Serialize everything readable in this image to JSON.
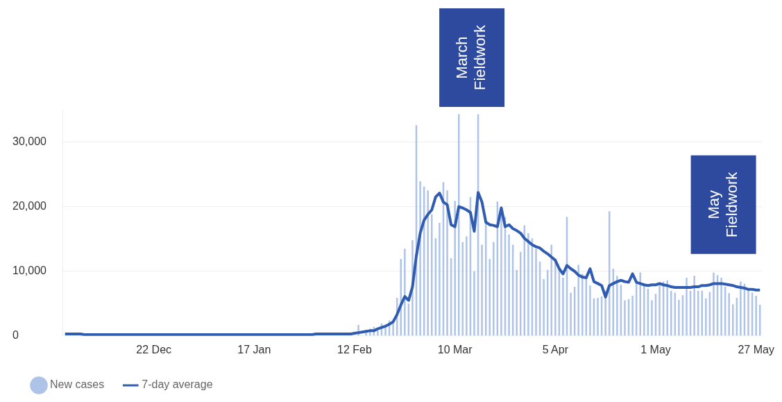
{
  "chart_data": {
    "type": "bar",
    "categories": [
      null,
      null,
      null,
      null,
      null,
      null,
      null,
      null,
      null,
      null,
      null,
      null,
      null,
      null,
      null,
      null,
      null,
      null,
      null,
      null,
      null,
      null,
      null,
      "22 Dec",
      null,
      null,
      null,
      null,
      null,
      null,
      null,
      null,
      null,
      null,
      null,
      null,
      null,
      null,
      null,
      null,
      null,
      null,
      null,
      null,
      null,
      null,
      null,
      null,
      null,
      "17 Jan",
      null,
      null,
      null,
      null,
      null,
      null,
      null,
      null,
      null,
      null,
      null,
      null,
      null,
      null,
      null,
      null,
      null,
      null,
      null,
      null,
      null,
      null,
      null,
      null,
      null,
      "12 Feb",
      null,
      null,
      null,
      null,
      null,
      null,
      null,
      null,
      null,
      null,
      null,
      null,
      null,
      null,
      null,
      null,
      null,
      null,
      null,
      null,
      null,
      null,
      null,
      null,
      null,
      "10 Mar",
      null,
      null,
      null,
      null,
      null,
      null,
      null,
      null,
      null,
      null,
      null,
      null,
      null,
      null,
      null,
      null,
      null,
      null,
      null,
      null,
      null,
      null,
      null,
      null,
      null,
      "5 Apr",
      null,
      null,
      null,
      null,
      null,
      null,
      null,
      null,
      null,
      null,
      null,
      null,
      null,
      null,
      null,
      null,
      null,
      null,
      null,
      null,
      null,
      null,
      null,
      null,
      null,
      "1 May",
      null,
      null,
      null,
      null,
      null,
      null,
      null,
      null,
      null,
      null,
      null,
      null,
      null,
      null,
      null,
      null,
      null,
      null,
      null,
      null,
      null,
      null,
      null,
      null,
      null,
      "27 May",
      null
    ],
    "series": [
      {
        "name": "New cases",
        "color": "#aec3e8",
        "values": [
          null,
          null,
          null,
          null,
          null,
          null,
          null,
          null,
          null,
          null,
          null,
          null,
          null,
          null,
          null,
          null,
          null,
          null,
          null,
          null,
          null,
          null,
          null,
          null,
          null,
          null,
          null,
          null,
          null,
          null,
          null,
          null,
          null,
          null,
          null,
          null,
          null,
          null,
          null,
          null,
          null,
          null,
          null,
          null,
          null,
          null,
          null,
          null,
          null,
          null,
          null,
          null,
          null,
          null,
          null,
          null,
          null,
          null,
          null,
          null,
          null,
          null,
          null,
          null,
          null,
          null,
          null,
          null,
          null,
          null,
          null,
          null,
          null,
          null,
          null,
          null,
          1700,
          null,
          900,
          1100,
          1400,
          900,
          1900,
          1700,
          2400,
          2200,
          5900,
          11900,
          13500,
          5000,
          14800,
          32600,
          23900,
          23100,
          22500,
          18800,
          15100,
          17500,
          23800,
          22500,
          12000,
          20900,
          34300,
          14500,
          15400,
          21500,
          10000,
          34300,
          14100,
          17600,
          11900,
          14500,
          20800,
          20000,
          18400,
          15700,
          14100,
          10200,
          13000,
          17100,
          15900,
          15100,
          13500,
          11500,
          8800,
          10200,
          14100,
          11700,
          10400,
          9000,
          18400,
          6700,
          7600,
          11000,
          9600,
          9100,
          7800,
          5800,
          5900,
          6100,
          7000,
          19300,
          10400,
          9300,
          7900,
          5500,
          5700,
          6200,
          8600,
          9800,
          8100,
          7300,
          5500,
          6500,
          8100,
          8400,
          8600,
          7000,
          6700,
          5600,
          6300,
          9000,
          7000,
          9300,
          7000,
          7000,
          5800,
          6800,
          9800,
          9400,
          9000,
          7600,
          6600,
          4900,
          5900,
          8400,
          8100,
          7400,
          6700,
          6200,
          4800
        ]
      },
      {
        "name": "7-day average",
        "type": "line",
        "color": "#2f5cb0",
        "values": [
          300,
          300,
          300,
          300,
          300,
          200,
          200,
          200,
          200,
          200,
          200,
          200,
          200,
          200,
          200,
          200,
          200,
          200,
          200,
          200,
          200,
          200,
          200,
          200,
          200,
          200,
          200,
          200,
          200,
          200,
          200,
          200,
          200,
          200,
          200,
          200,
          200,
          200,
          200,
          200,
          200,
          200,
          200,
          200,
          200,
          200,
          200,
          200,
          200,
          200,
          200,
          200,
          200,
          200,
          200,
          200,
          200,
          200,
          200,
          200,
          200,
          200,
          200,
          200,
          200,
          300,
          300,
          300,
          300,
          300,
          300,
          300,
          300,
          300,
          300,
          400,
          500,
          600,
          700,
          800,
          800,
          1100,
          1300,
          1500,
          1800,
          2200,
          3300,
          4800,
          6100,
          5500,
          7600,
          12400,
          15900,
          17900,
          18800,
          19500,
          21500,
          22100,
          20700,
          20300,
          17200,
          16900,
          20000,
          19800,
          19500,
          19100,
          16200,
          22200,
          20700,
          17600,
          17200,
          17100,
          16900,
          19800,
          16900,
          17200,
          16600,
          16300,
          15900,
          15100,
          14600,
          14100,
          13800,
          13600,
          13100,
          12700,
          12200,
          11700,
          10400,
          9600,
          10900,
          10400,
          10000,
          9400,
          9100,
          9000,
          10400,
          8400,
          8100,
          7800,
          6000,
          7800,
          8100,
          8400,
          8600,
          8400,
          8300,
          9600,
          8300,
          8100,
          7900,
          7800,
          7900,
          7900,
          8100,
          7900,
          7800,
          7600,
          7500,
          7500,
          7500,
          7500,
          7500,
          7600,
          7600,
          7800,
          7800,
          7900,
          8100,
          8100,
          8100,
          8000,
          7900,
          7800,
          7600,
          7500,
          7400,
          7200,
          7200,
          7100,
          7100
        ]
      }
    ],
    "ylim": [
      0,
      35000
    ],
    "yticks": [
      {
        "value": 0,
        "label": "0"
      },
      {
        "value": 10000,
        "label": "10,000"
      },
      {
        "value": 20000,
        "label": "20,000"
      },
      {
        "value": 30000,
        "label": "30,000"
      }
    ],
    "grid": "y",
    "legend": "bottom left",
    "marker": "none",
    "annotations": [
      "March Fieldwork",
      "May Fieldwork"
    ]
  }
}
